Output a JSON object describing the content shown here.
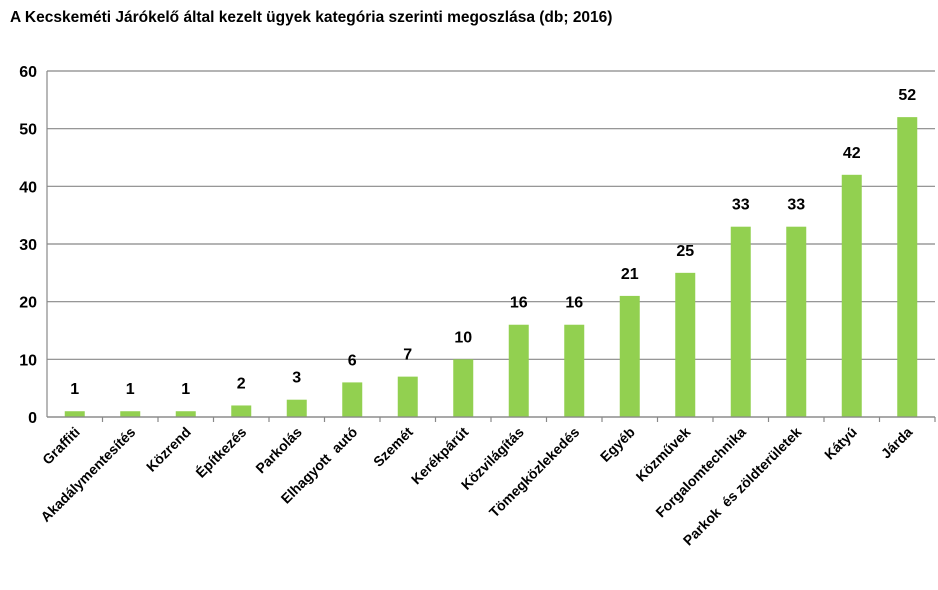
{
  "chart_data": {
    "type": "bar",
    "title": "A Kecskeméti  Járókelő által kezelt  ügyek kategória szerinti megoszlása (db; 2016)",
    "categories": [
      "Graffiti",
      "Akadálymentesítés",
      "Közrend",
      "Építkezés",
      "Parkolás",
      "Elhagyott  autó",
      "Szemét",
      "Kerékpárút",
      "Közvilágítás",
      "Tömegközlekedés",
      "Egyéb",
      "Közművek",
      "Forgalomtechnika",
      "Parkok  és zöldterületek",
      "Kátyú",
      "Járda"
    ],
    "values": [
      1,
      1,
      1,
      2,
      3,
      6,
      7,
      10,
      16,
      16,
      21,
      25,
      33,
      33,
      42,
      52
    ],
    "xlabel": "",
    "ylabel": "",
    "ylim": [
      0,
      60
    ],
    "yticks": [
      0,
      10,
      20,
      30,
      40,
      50,
      60
    ],
    "grid": true,
    "data_labels": true,
    "colors": {
      "bar": "#92d050",
      "grid": "#888888",
      "axis": "#888888",
      "text": "#000000"
    }
  }
}
